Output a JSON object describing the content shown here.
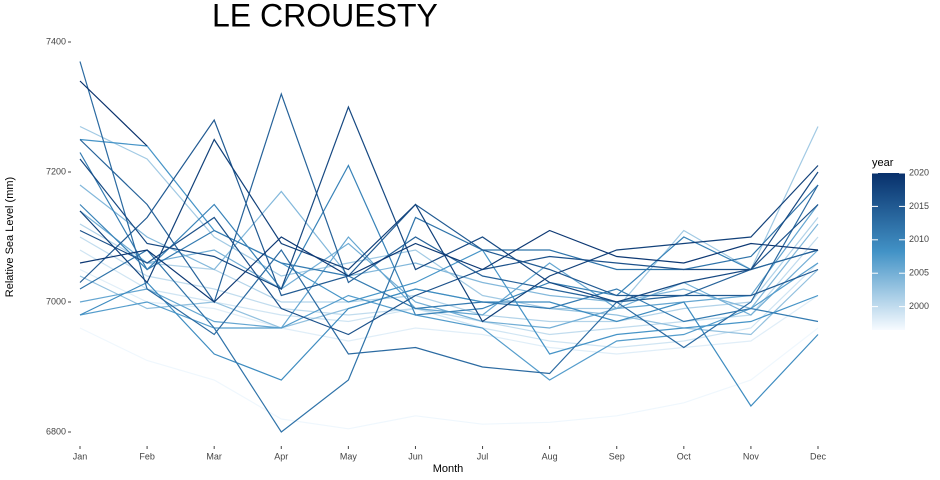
{
  "chart_data": {
    "type": "line",
    "title": "LE CROUESTY",
    "x_label": "Month",
    "y_label": "Relative Sea Level (mm)",
    "categories": [
      "Jan",
      "Feb",
      "Mar",
      "Apr",
      "May",
      "Jun",
      "Jul",
      "Aug",
      "Sep",
      "Oct",
      "Nov",
      "Dec"
    ],
    "ylim": [
      6780,
      7410
    ],
    "yticks": [
      6800,
      7000,
      7200,
      7400
    ],
    "colorbar": {
      "title": "year",
      "lim": [
        1996.5,
        2020
      ],
      "ticks": [
        2000,
        2005,
        2010,
        2015,
        2020
      ],
      "colors": [
        "#f7fbff",
        "#4292c6",
        "#08306b"
      ]
    },
    "series": [
      {
        "year": 1997,
        "values": [
          6960,
          6910,
          6880,
          6820,
          6805,
          6825,
          6812,
          6815,
          6825,
          6845,
          6880,
          6960
        ]
      },
      {
        "year": 1998,
        "values": [
          7050,
          7000,
          6990,
          6960,
          6940,
          6960,
          6950,
          6930,
          6920,
          6930,
          6940,
          7010
        ]
      },
      {
        "year": 1999,
        "values": [
          7080,
          7020,
          7000,
          6980,
          6970,
          6990,
          6960,
          6940,
          6930,
          6940,
          6960,
          7060
        ]
      },
      {
        "year": 2000,
        "values": [
          7100,
          7040,
          7020,
          6990,
          6980,
          6990,
          6970,
          6950,
          6960,
          6970,
          6980,
          7100
        ]
      },
      {
        "year": 2001,
        "values": [
          7120,
          7060,
          7050,
          7000,
          7000,
          7010,
          6980,
          6970,
          6970,
          6990,
          7000,
          7130
        ]
      },
      {
        "year": 2002,
        "values": [
          7270,
          7220,
          7100,
          7040,
          7060,
          7080,
          7010,
          6990,
          6990,
          7110,
          7050,
          7270
        ]
      },
      {
        "year": 2003,
        "values": [
          7040,
          6990,
          7000,
          6960,
          6990,
          7020,
          7000,
          6990,
          6980,
          6960,
          6950,
          7050
        ]
      },
      {
        "year": 2004,
        "values": [
          7180,
          7100,
          7050,
          7170,
          7040,
          7060,
          7030,
          7010,
          7000,
          7020,
          6990,
          7120
        ]
      },
      {
        "year": 2005,
        "values": [
          7140,
          7060,
          7080,
          7020,
          7090,
          7000,
          6970,
          6960,
          6990,
          7030,
          6980,
          7080
        ]
      },
      {
        "year": 2006,
        "values": [
          7000,
          7020,
          6970,
          6960,
          7100,
          6990,
          6980,
          7060,
          6990,
          7000,
          7010,
          7150
        ]
      },
      {
        "year": 2007,
        "values": [
          6980,
          7000,
          6960,
          6960,
          7010,
          6980,
          6960,
          6880,
          6940,
          6950,
          6990,
          7060
        ]
      },
      {
        "year": 2008,
        "values": [
          7250,
          7240,
          7110,
          7060,
          7000,
          7030,
          7080,
          6920,
          6950,
          6960,
          6970,
          7010
        ]
      },
      {
        "year": 2009,
        "values": [
          6980,
          7030,
          6920,
          6880,
          6990,
          7020,
          7000,
          7000,
          6970,
          7000,
          6840,
          6950
        ]
      },
      {
        "year": 2010,
        "values": [
          7150,
          7050,
          7150,
          7020,
          7210,
          6980,
          6990,
          7030,
          7010,
          7100,
          7050,
          7080
        ]
      },
      {
        "year": 2011,
        "values": [
          7230,
          7050,
          7110,
          7060,
          7040,
          6990,
          7000,
          6990,
          7020,
          6970,
          6990,
          6970
        ]
      },
      {
        "year": 2012,
        "values": [
          7020,
          7080,
          6960,
          6800,
          6880,
          7130,
          7080,
          7080,
          7050,
          7050,
          7070,
          7180
        ]
      },
      {
        "year": 2013,
        "values": [
          7370,
          7020,
          6950,
          7080,
          6920,
          6930,
          6900,
          6890,
          7000,
          6930,
          7000,
          7180
        ]
      },
      {
        "year": 2014,
        "values": [
          7250,
          7150,
          7000,
          7320,
          7030,
          7100,
          7040,
          7020,
          7000,
          7010,
          7050,
          7080
        ]
      },
      {
        "year": 2015,
        "values": [
          7030,
          7130,
          7280,
          7010,
          7040,
          7150,
          7080,
          7050,
          7010,
          7010,
          7010,
          7050
        ]
      },
      {
        "year": 2016,
        "values": [
          7110,
          7060,
          7130,
          6990,
          6950,
          7010,
          7050,
          7070,
          7060,
          7050,
          7050,
          7150
        ]
      },
      {
        "year": 2017,
        "values": [
          7220,
          7090,
          7070,
          7020,
          7300,
          7050,
          7100,
          7030,
          7000,
          7030,
          7050,
          7200
        ]
      },
      {
        "year": 2018,
        "values": [
          7140,
          7030,
          7250,
          7090,
          7050,
          7150,
          6970,
          7040,
          7080,
          7090,
          7100,
          7210
        ]
      },
      {
        "year": 2019,
        "values": [
          7060,
          7080,
          7000,
          7100,
          7040,
          7090,
          7050,
          7110,
          7070,
          7060,
          7090,
          7080
        ]
      },
      {
        "year": 2020,
        "values": [
          7340,
          7240,
          null,
          null,
          null,
          null,
          null,
          null,
          null,
          null,
          null,
          null
        ]
      }
    ]
  }
}
